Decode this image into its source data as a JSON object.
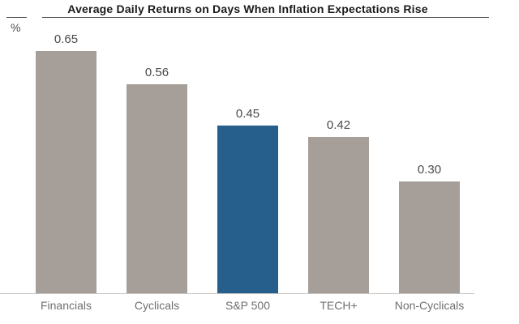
{
  "chart_data": {
    "type": "bar",
    "title": "Average Daily Returns on Days When Inflation Expectations Rise",
    "ylabel": "%",
    "xlabel": "",
    "categories": [
      "Financials",
      "Cyclicals",
      "S&P 500",
      "TECH+",
      "Non-Cyclicals"
    ],
    "values": [
      0.65,
      0.56,
      0.45,
      0.42,
      0.3
    ],
    "value_labels": [
      "0.65",
      "0.56",
      "0.45",
      "0.42",
      "0.30"
    ],
    "ylim": [
      0,
      0.75
    ],
    "grid": false,
    "legend": "none",
    "highlighted_category": "S&P 500",
    "bar_colors": [
      "#a69f99",
      "#a69f99",
      "#275f8c",
      "#a69f99",
      "#a69f99"
    ],
    "colors": {
      "default_bar": "#a69f99",
      "highlight_bar": "#275f8c",
      "title_text": "#1a1a1a",
      "value_label_text": "#4a4a4a",
      "category_label_text": "#6f6f6f",
      "header_rule": "#4d4d4d",
      "baseline": "#c9c5c1",
      "background": "#ffffff"
    }
  }
}
